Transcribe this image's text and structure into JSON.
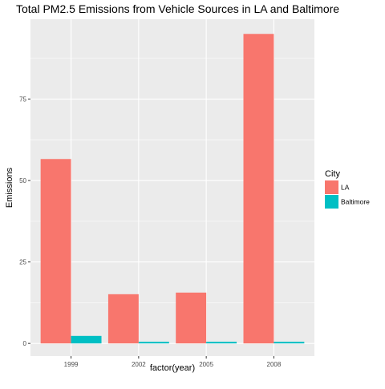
{
  "chart_data": {
    "type": "bar",
    "title": "Total PM2.5 Emissions from Vehicle Sources in LA and Baltimore",
    "xlabel": "factor(year)",
    "ylabel": "Emissions",
    "categories": [
      "1999",
      "2002",
      "2005",
      "2008"
    ],
    "series": [
      {
        "name": "LA",
        "color": "#F8766D",
        "values": [
          56.6,
          15.1,
          15.6,
          95.0
        ]
      },
      {
        "name": "Baltimore",
        "color": "#00BFC4",
        "values": [
          2.3,
          0.5,
          0.5,
          0.5
        ]
      }
    ],
    "ylim": [
      -3.9,
      99.5
    ],
    "yticks": [
      0,
      25,
      50,
      75
    ],
    "ytick_labels": [
      "0",
      "25",
      "50",
      "75"
    ],
    "grid": true,
    "legend": {
      "title": "City",
      "position": "right"
    },
    "panel_color": "#EBEBEB",
    "grid_color": "#FFFFFF"
  }
}
